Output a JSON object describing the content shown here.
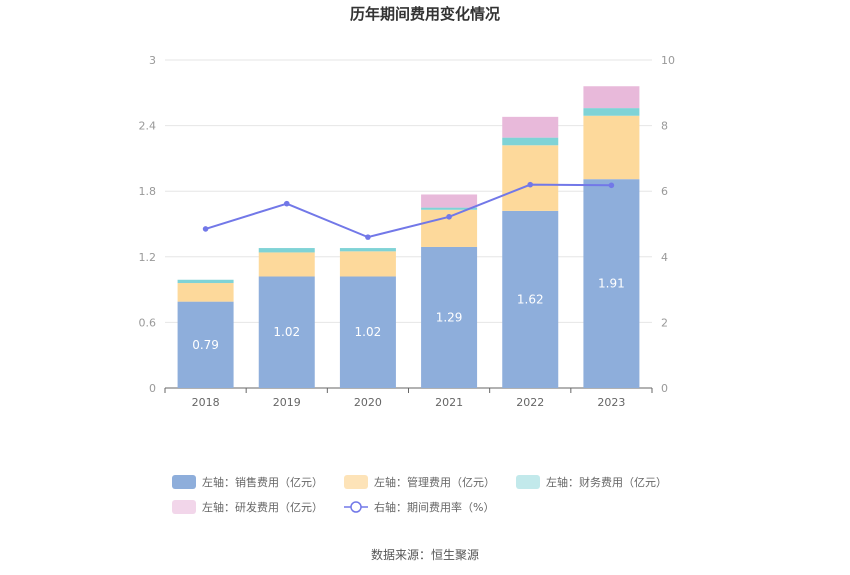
{
  "chart_data": {
    "type": "bar",
    "stacked": true,
    "title": "历年期间费用变化情况",
    "categories": [
      "2018",
      "2019",
      "2020",
      "2021",
      "2022",
      "2023"
    ],
    "left_axis": {
      "min": 0,
      "max": 3,
      "ticks": [
        "0",
        "0.6",
        "1.2",
        "1.8",
        "2.4",
        "3"
      ]
    },
    "right_axis": {
      "min": 0,
      "max": 10,
      "ticks": [
        "0",
        "2",
        "4",
        "6",
        "8",
        "10"
      ]
    },
    "series": [
      {
        "name": "左轴：销售费用（亿元）",
        "axis": "left",
        "color": "#8eaedb",
        "values": [
          0.79,
          1.02,
          1.02,
          1.29,
          1.62,
          1.91
        ],
        "labels": [
          "0.79",
          "1.02",
          "1.02",
          "1.29",
          "1.62",
          "1.91"
        ]
      },
      {
        "name": "左轴：管理费用（亿元）",
        "axis": "left",
        "color": "#fdd99b",
        "values": [
          0.17,
          0.22,
          0.23,
          0.34,
          0.6,
          0.58
        ]
      },
      {
        "name": "左轴：财务费用（亿元）",
        "axis": "left",
        "color": "#7fd3d6",
        "values": [
          0.03,
          0.04,
          0.03,
          0.02,
          0.07,
          0.07
        ]
      },
      {
        "name": "左轴：研发费用（亿元）",
        "axis": "left",
        "color": "#e8b9da",
        "values": [
          0.0,
          0.0,
          0.0,
          0.12,
          0.19,
          0.2
        ]
      },
      {
        "name": "右轴：期间费用率（%）",
        "axis": "right",
        "type": "line",
        "color": "#7278e8",
        "values": [
          4.85,
          5.62,
          4.6,
          5.22,
          6.2,
          6.18
        ]
      }
    ],
    "legend_position": "bottom",
    "source": "数据来源：恒生聚源"
  }
}
